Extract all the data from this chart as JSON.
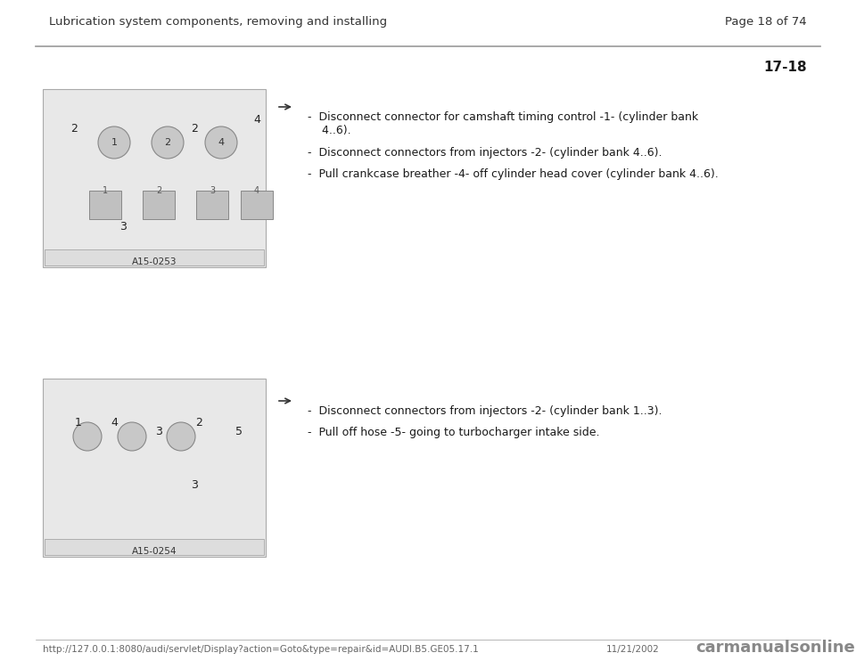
{
  "header_left": "Lubrication system components, removing and installing",
  "header_right": "Page 18 of 74",
  "section_number": "17-18",
  "footer_url": "http://127.0.0.1:8080/audi/servlet/Display?action=Goto&type=repair&id=AUDI.B5.GE05.17.1",
  "footer_date": "11/21/2002",
  "footer_watermark": "carmanualsonline.info",
  "image1_label": "A15-0253",
  "image2_label": "A15-0254",
  "block1_instructions": [
    "Disconnect connector for camshaft timing control -1- (cylinder bank\n    4..6).",
    "Disconnect connectors from injectors -2- (cylinder bank 4..6).",
    "Pull crankcase breather -4- off cylinder head cover (cylinder bank 4..6)."
  ],
  "block2_instructions": [
    "Disconnect connectors from injectors -2- (cylinder bank 1..3).",
    "Pull off hose -5- going to turbocharger intake side."
  ],
  "bg_color": "#ffffff",
  "text_color": "#1a1a1a",
  "header_color": "#333333",
  "line_color": "#999999",
  "box_bg": "#f0f0f0",
  "header_fontsize": 9.5,
  "body_fontsize": 9.0,
  "section_fontsize": 11.0,
  "footer_fontsize": 7.5
}
